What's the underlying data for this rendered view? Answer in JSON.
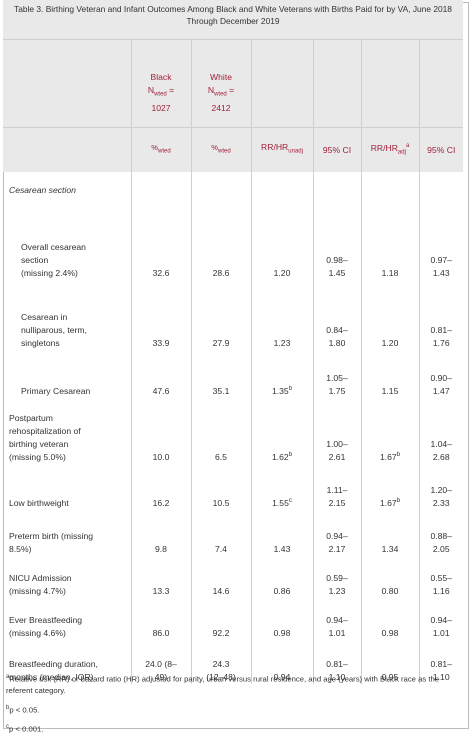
{
  "caption": {
    "line1": "Table 3. Birthing Veteran and Infant Outcomes Among Black and White Veterans with Births Paid for by VA, June 2018",
    "line2": "Through December 2019"
  },
  "header": {
    "black_label": "Black",
    "black_n": "N",
    "black_n_sub": "wted",
    "black_n_eq": " =",
    "black_count": "1027",
    "white_label": "White",
    "white_n": "N",
    "white_n_sub": "wted",
    "white_n_eq": " =",
    "white_count": "2412",
    "pct": "%",
    "pct_sub": "wted",
    "rr_unadj": "RR/HR",
    "rr_unadj_sub": "unadj",
    "ci": "95% CI",
    "rr_adj": "RR/HR",
    "rr_adj_sub": "adj",
    "rr_adj_sup": "a",
    "ci2": "95% CI"
  },
  "section_label": "Cesarean section",
  "rows": [
    {
      "label": [
        "Overall cesarean",
        "section",
        "(missing 2.4%)"
      ],
      "black": "32.6",
      "white": "28.6",
      "rr": "1.20",
      "rr_sup": "",
      "ci": [
        "0.98–",
        "1.45"
      ],
      "rr_adj": "1.18",
      "rr_adj_sup": "",
      "ci2": [
        "0.97–",
        "1.43"
      ]
    },
    {
      "label": [
        "Cesarean in",
        "nulliparous, term,",
        "singletons"
      ],
      "black": "33.9",
      "white": "27.9",
      "rr": "1.23",
      "rr_sup": "",
      "ci": [
        "0.84–",
        "1.80"
      ],
      "rr_adj": "1.20",
      "rr_adj_sup": "",
      "ci2": [
        "0.81–",
        "1.76"
      ]
    },
    {
      "label": [
        "Primary Cesarean"
      ],
      "black": "47.6",
      "white": "35.1",
      "rr": "1.35",
      "rr_sup": "b",
      "ci": [
        "1.05–",
        "1.75"
      ],
      "rr_adj": "1.15",
      "rr_adj_sup": "",
      "ci2": [
        "0.90–",
        "1.47"
      ]
    },
    {
      "label": [
        "Postpartum",
        "rehospitalization of",
        "birthing veteran",
        "(missing 5.0%)"
      ],
      "black": "10.0",
      "white": "6.5",
      "rr": "1.62",
      "rr_sup": "b",
      "ci": [
        "1.00–",
        "2.61"
      ],
      "rr_adj": "1.67",
      "rr_adj_sup": "b",
      "ci2": [
        "1.04–",
        "2.68"
      ]
    },
    {
      "label": [
        "Low birthweight"
      ],
      "black": "16.2",
      "white": "10.5",
      "rr": "1.55",
      "rr_sup": "c",
      "ci": [
        "1.11–",
        "2.15"
      ],
      "rr_adj": "1.67",
      "rr_adj_sup": "b",
      "ci2": [
        "1.20–",
        "2.33"
      ]
    },
    {
      "label": [
        "Preterm birth (missing",
        "8.5%)"
      ],
      "black": "9.8",
      "white": "7.4",
      "rr": "1.43",
      "rr_sup": "",
      "ci": [
        "0.94–",
        "2.17"
      ],
      "rr_adj": "1.34",
      "rr_adj_sup": "",
      "ci2": [
        "0.88–",
        "2.05"
      ]
    },
    {
      "label": [
        "NICU Admission",
        "(missing 4.7%)"
      ],
      "black": "13.3",
      "white": "14.6",
      "rr": "0.86",
      "rr_sup": "",
      "ci": [
        "0.59–",
        "1.23"
      ],
      "rr_adj": "0.80",
      "rr_adj_sup": "",
      "ci2": [
        "0.55–",
        "1.16"
      ]
    },
    {
      "label": [
        "Ever Breastfeeding",
        "(missing 4.6%)"
      ],
      "black": "86.0",
      "white": "92.2",
      "rr": "0.98",
      "rr_sup": "",
      "ci": [
        "0.94–",
        "1.01"
      ],
      "rr_adj": "0.98",
      "rr_adj_sup": "",
      "ci2": [
        "0.94–",
        "1.01"
      ]
    },
    {
      "label": [
        "Breastfeeding duration,",
        "months (median, IQR)"
      ],
      "black": "24.0 (8–\n49)",
      "white": "24.3\n(12–48)",
      "rr": "0.94",
      "rr_sup": "",
      "ci": [
        "0.81–",
        "1.10"
      ],
      "rr_adj": "0.95",
      "rr_adj_sup": "",
      "ci2": [
        "0.81–",
        "1.10"
      ]
    }
  ],
  "footnotes": {
    "a_sup": "a",
    "a_text": "Relative risk (RR) or hazard ratio (HR) adjusted for parity, urban versus rural residence, and age (years) with Black race as the referent category.",
    "b_sup": "b",
    "b_text": "p < 0.05.",
    "c_sup": "c",
    "c_text": "p < 0.001."
  }
}
